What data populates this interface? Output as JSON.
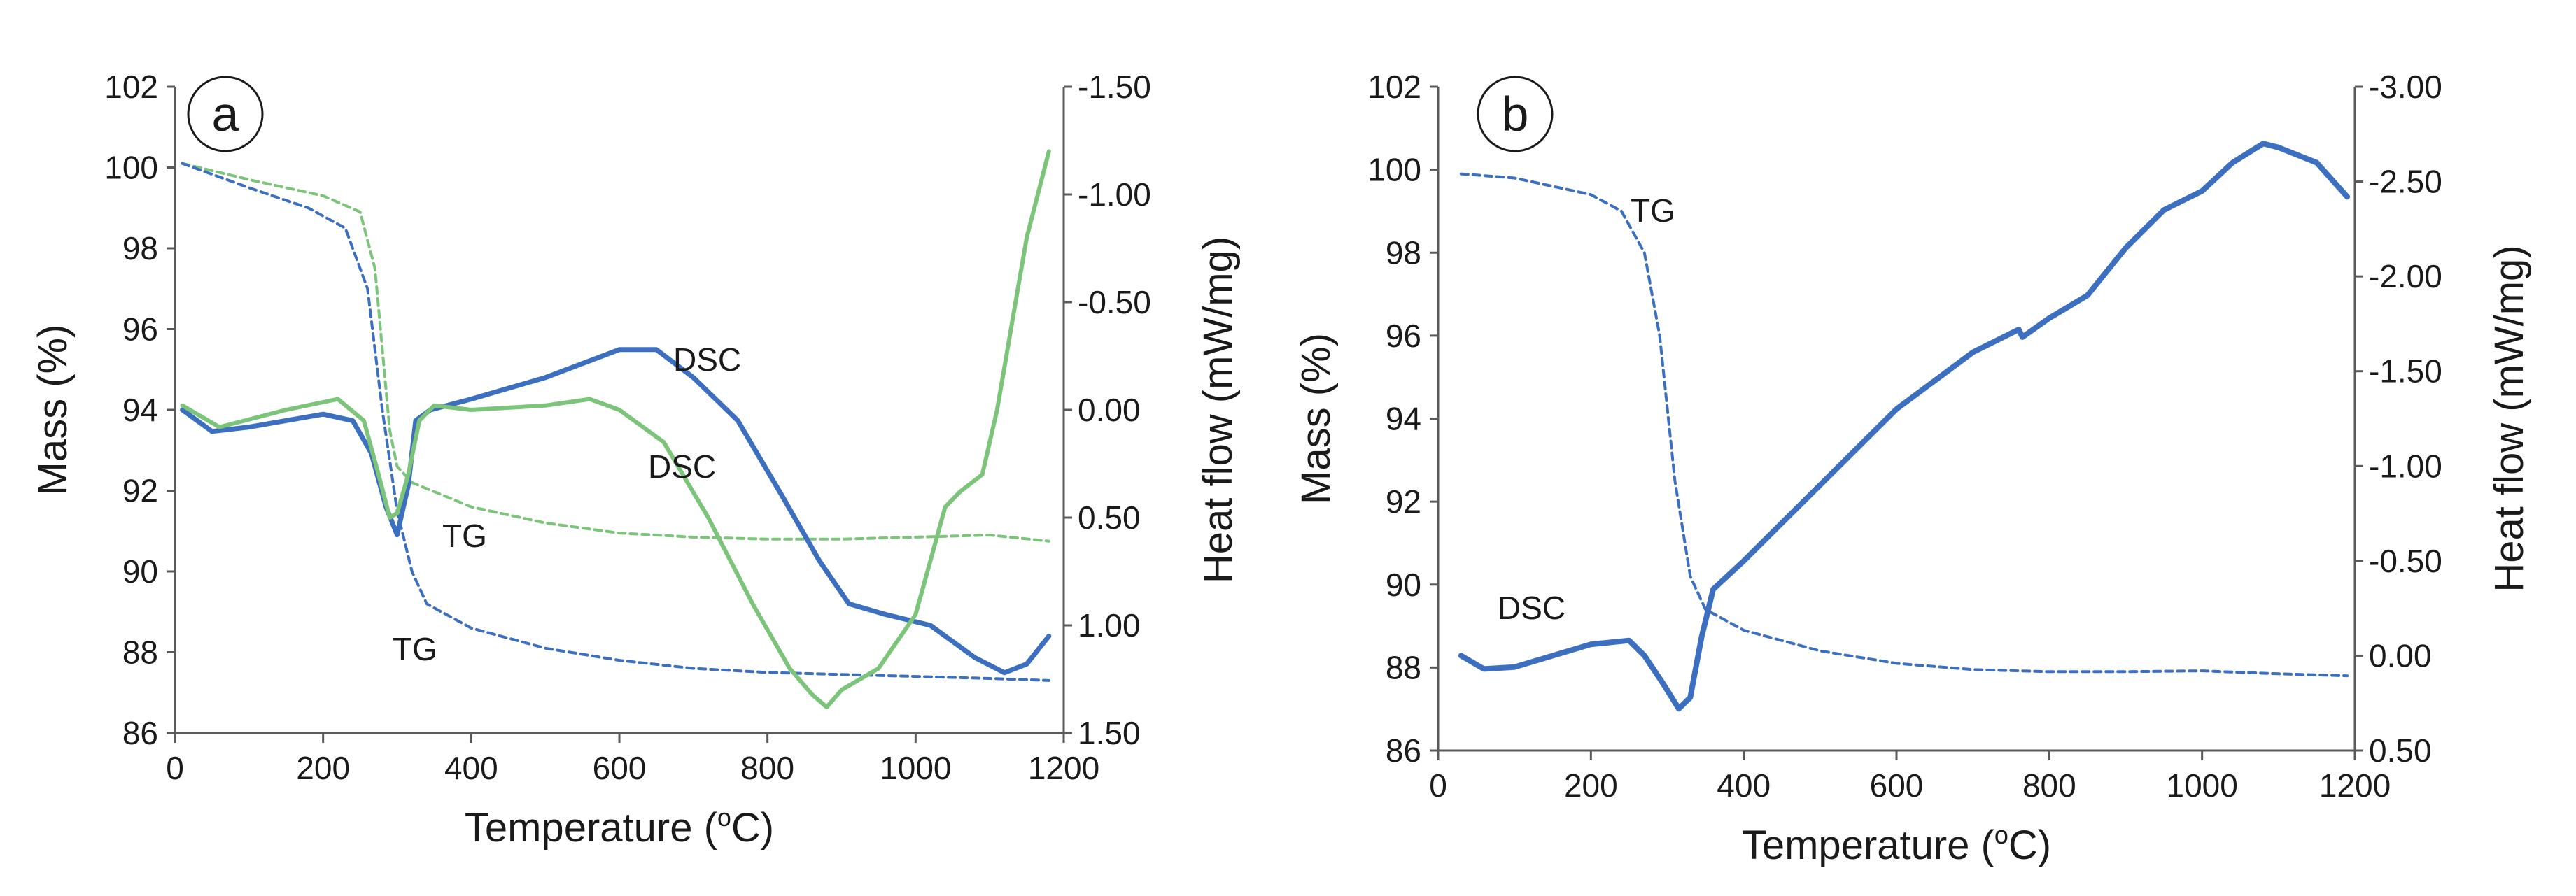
{
  "chart_data": [
    {
      "type": "line",
      "panel_label": "a",
      "xlabel": {
        "main": "Temperature (",
        "sup": "o",
        "unit": "C)"
      },
      "ylabel_left": "Mass (%)",
      "ylabel_right": "Heat flow (mW/mg)",
      "xlim": [
        0,
        1200
      ],
      "ylim_left": [
        86,
        102
      ],
      "ylim_right": [
        -1.5,
        1.5
      ],
      "right_axis_inverted": true,
      "x_ticks": [
        "0",
        "200",
        "400",
        "600",
        "800",
        "1000",
        "1200"
      ],
      "y_left_ticks": [
        "86",
        "88",
        "90",
        "92",
        "94",
        "96",
        "98",
        "100",
        "102"
      ],
      "y_right_ticks": [
        "-1.50",
        "-1.00",
        "-0.50",
        "0.00",
        "0.50",
        "1.00",
        "1.50"
      ],
      "series": [
        {
          "name": "TG (green)",
          "axis": "left",
          "style": "dashed",
          "color": "#7cc47a",
          "points": [
            [
              10,
              100.1
            ],
            [
              100,
              99.7
            ],
            [
              200,
              99.3
            ],
            [
              250,
              98.9
            ],
            [
              270,
              97.5
            ],
            [
              290,
              93.5
            ],
            [
              300,
              92.6
            ],
            [
              320,
              92.2
            ],
            [
              400,
              91.6
            ],
            [
              500,
              91.2
            ],
            [
              600,
              90.95
            ],
            [
              700,
              90.85
            ],
            [
              800,
              90.8
            ],
            [
              900,
              90.8
            ],
            [
              1000,
              90.85
            ],
            [
              1100,
              90.9
            ],
            [
              1180,
              90.75
            ]
          ]
        },
        {
          "name": "TG (blue)",
          "axis": "left",
          "style": "dashed",
          "color": "#3d6fc0",
          "points": [
            [
              10,
              100.1
            ],
            [
              100,
              99.5
            ],
            [
              180,
              99.0
            ],
            [
              230,
              98.5
            ],
            [
              260,
              97.0
            ],
            [
              280,
              94.0
            ],
            [
              300,
              91.5
            ],
            [
              320,
              90.0
            ],
            [
              340,
              89.2
            ],
            [
              400,
              88.6
            ],
            [
              500,
              88.1
            ],
            [
              600,
              87.8
            ],
            [
              700,
              87.6
            ],
            [
              800,
              87.5
            ],
            [
              900,
              87.45
            ],
            [
              1000,
              87.4
            ],
            [
              1100,
              87.35
            ],
            [
              1180,
              87.3
            ]
          ]
        },
        {
          "name": "DSC (blue)",
          "axis": "right",
          "style": "solid",
          "color": "#3d6fc0",
          "width": 7,
          "points": [
            [
              10,
              0.0
            ],
            [
              50,
              0.1
            ],
            [
              100,
              0.08
            ],
            [
              200,
              0.02
            ],
            [
              240,
              0.05
            ],
            [
              265,
              0.2
            ],
            [
              285,
              0.45
            ],
            [
              300,
              0.58
            ],
            [
              315,
              0.35
            ],
            [
              325,
              0.05
            ],
            [
              345,
              0.0
            ],
            [
              400,
              -0.05
            ],
            [
              500,
              -0.15
            ],
            [
              600,
              -0.28
            ],
            [
              650,
              -0.28
            ],
            [
              700,
              -0.15
            ],
            [
              760,
              0.05
            ],
            [
              820,
              0.4
            ],
            [
              870,
              0.7
            ],
            [
              910,
              0.9
            ],
            [
              960,
              0.95
            ],
            [
              1020,
              1.0
            ],
            [
              1080,
              1.15
            ],
            [
              1120,
              1.22
            ],
            [
              1150,
              1.18
            ],
            [
              1180,
              1.05
            ]
          ]
        },
        {
          "name": "DSC (green)",
          "axis": "right",
          "style": "solid",
          "color": "#7cc47a",
          "width": 6,
          "points": [
            [
              10,
              -0.02
            ],
            [
              60,
              0.08
            ],
            [
              150,
              0.0
            ],
            [
              220,
              -0.05
            ],
            [
              255,
              0.05
            ],
            [
              275,
              0.3
            ],
            [
              290,
              0.5
            ],
            [
              300,
              0.48
            ],
            [
              315,
              0.3
            ],
            [
              330,
              0.05
            ],
            [
              350,
              -0.02
            ],
            [
              400,
              0.0
            ],
            [
              500,
              -0.02
            ],
            [
              560,
              -0.05
            ],
            [
              600,
              0.0
            ],
            [
              660,
              0.15
            ],
            [
              720,
              0.5
            ],
            [
              780,
              0.9
            ],
            [
              830,
              1.2
            ],
            [
              860,
              1.32
            ],
            [
              880,
              1.38
            ],
            [
              900,
              1.3
            ],
            [
              950,
              1.2
            ],
            [
              1000,
              0.95
            ],
            [
              1020,
              0.7
            ],
            [
              1040,
              0.45
            ],
            [
              1060,
              0.38
            ],
            [
              1090,
              0.3
            ],
            [
              1110,
              0.0
            ],
            [
              1130,
              -0.4
            ],
            [
              1150,
              -0.8
            ],
            [
              1180,
              -1.2
            ]
          ]
        }
      ],
      "annotations": [
        "DSC",
        "DSC",
        "TG",
        "TG"
      ]
    },
    {
      "type": "line",
      "panel_label": "b",
      "xlabel": {
        "main": "Temperature (",
        "sup": "o",
        "unit": "C)"
      },
      "ylabel_left": "Mass (%)",
      "ylabel_right": "Heat flow (mW/mg)",
      "xlim": [
        0,
        1200
      ],
      "ylim_left": [
        86,
        102
      ],
      "ylim_right": [
        -3.0,
        0.5
      ],
      "right_axis_inverted": true,
      "x_ticks": [
        "0",
        "200",
        "400",
        "600",
        "800",
        "1000",
        "1200"
      ],
      "y_left_ticks": [
        "86",
        "88",
        "90",
        "92",
        "94",
        "96",
        "98",
        "100",
        "102"
      ],
      "y_right_ticks": [
        "-3.00",
        "-2.50",
        "-2.00",
        "-1.50",
        "-1.00",
        "-0.50",
        "0.00",
        "0.50"
      ],
      "series": [
        {
          "name": "TG",
          "axis": "left",
          "style": "dashed",
          "color": "#3d6fc0",
          "points": [
            [
              30,
              99.9
            ],
            [
              100,
              99.8
            ],
            [
              200,
              99.4
            ],
            [
              240,
              99.0
            ],
            [
              270,
              98.0
            ],
            [
              290,
              96.0
            ],
            [
              310,
              92.5
            ],
            [
              330,
              90.2
            ],
            [
              350,
              89.4
            ],
            [
              400,
              88.9
            ],
            [
              500,
              88.4
            ],
            [
              600,
              88.1
            ],
            [
              700,
              87.95
            ],
            [
              800,
              87.9
            ],
            [
              900,
              87.9
            ],
            [
              1000,
              87.92
            ],
            [
              1100,
              87.85
            ],
            [
              1190,
              87.8
            ]
          ]
        },
        {
          "name": "DSC",
          "axis": "right",
          "style": "solid",
          "color": "#3d6fc0",
          "width": 8,
          "points": [
            [
              30,
              0.0
            ],
            [
              60,
              0.07
            ],
            [
              100,
              0.06
            ],
            [
              200,
              -0.06
            ],
            [
              250,
              -0.08
            ],
            [
              270,
              0.0
            ],
            [
              295,
              0.15
            ],
            [
              315,
              0.28
            ],
            [
              330,
              0.22
            ],
            [
              345,
              -0.1
            ],
            [
              360,
              -0.35
            ],
            [
              400,
              -0.5
            ],
            [
              500,
              -0.9
            ],
            [
              600,
              -1.3
            ],
            [
              700,
              -1.6
            ],
            [
              760,
              -1.72
            ],
            [
              765,
              -1.68
            ],
            [
              800,
              -1.78
            ],
            [
              850,
              -1.9
            ],
            [
              900,
              -2.15
            ],
            [
              950,
              -2.35
            ],
            [
              1000,
              -2.45
            ],
            [
              1040,
              -2.6
            ],
            [
              1080,
              -2.7
            ],
            [
              1100,
              -2.68
            ],
            [
              1150,
              -2.6
            ],
            [
              1190,
              -2.42
            ]
          ]
        }
      ],
      "annotations": [
        "DSC",
        "TG"
      ]
    }
  ]
}
